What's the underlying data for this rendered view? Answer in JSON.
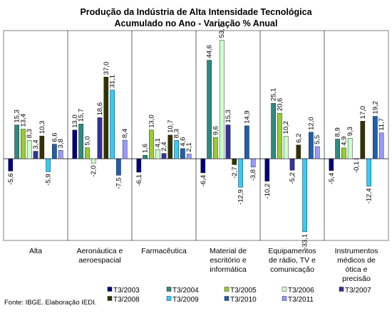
{
  "chart_data": {
    "type": "bar",
    "title": "Produção da Indústria de Alta Intensidade Tecnológica",
    "subtitle": "Acumulado no Ano - Variação % Anual",
    "categories": [
      "Alta",
      "Aeronáutica e aeroespacial",
      "Farmacêutica",
      "Material de escritório e informática",
      "Equipamentos de rádio, TV e comunicação",
      "Instrumentos médicos de ótica e precisão"
    ],
    "category_lines": [
      [
        "Alta"
      ],
      [
        "Aeronáutica e",
        "aeroespacial"
      ],
      [
        "Farmacêutica"
      ],
      [
        "Material de",
        "escritório e",
        "informática"
      ],
      [
        "Equipamentos",
        "de rádio, TV e",
        "comunicação"
      ],
      [
        "Instrumentos",
        "médicos de",
        "ótica e",
        "precisão"
      ]
    ],
    "series": [
      {
        "name": "T3/2003",
        "color": "#000080",
        "values": [
          -5.6,
          13.0,
          -6.1,
          -6.4,
          -10.2,
          -5.4
        ]
      },
      {
        "name": "T3/2004",
        "color": "#2E8B80",
        "values": [
          15.3,
          15.7,
          1.6,
          44.6,
          25.1,
          8.9
        ]
      },
      {
        "name": "T3/2005",
        "color": "#99CC33",
        "values": [
          13.4,
          5.0,
          13.0,
          9.6,
          20.6,
          4.9
        ]
      },
      {
        "name": "T3/2006",
        "color": "#CCFFCC",
        "values": [
          8.3,
          -2.0,
          4.1,
          53.7,
          10.2,
          9.3
        ]
      },
      {
        "name": "T3/2007",
        "color": "#333399",
        "values": [
          3.4,
          18.6,
          2.4,
          15.3,
          -5.2,
          -0.1
        ]
      },
      {
        "name": "T3/2008",
        "color": "#333300",
        "values": [
          10.3,
          37.0,
          10.7,
          -2.7,
          6.2,
          17.0
        ]
      },
      {
        "name": "T3/2009",
        "color": "#33CCFF",
        "values": [
          -5.9,
          31.1,
          8.3,
          -12.9,
          -33.1,
          -12.4
        ]
      },
      {
        "name": "T3/2010",
        "color": "#1F5FAF",
        "values": [
          6.6,
          -7.5,
          4.6,
          14.9,
          12.0,
          19.2
        ]
      },
      {
        "name": "T3/2011",
        "color": "#9999FF",
        "values": [
          3.8,
          8.4,
          2.1,
          -3.8,
          5.5,
          11.7
        ]
      }
    ],
    "ylim": [
      -37,
      58
    ],
    "grid": false,
    "legend_position": "bottom",
    "data_labels": true,
    "decimal_separator": ","
  },
  "source_note": "Fonte: IBGE. Elaboração IEDI."
}
